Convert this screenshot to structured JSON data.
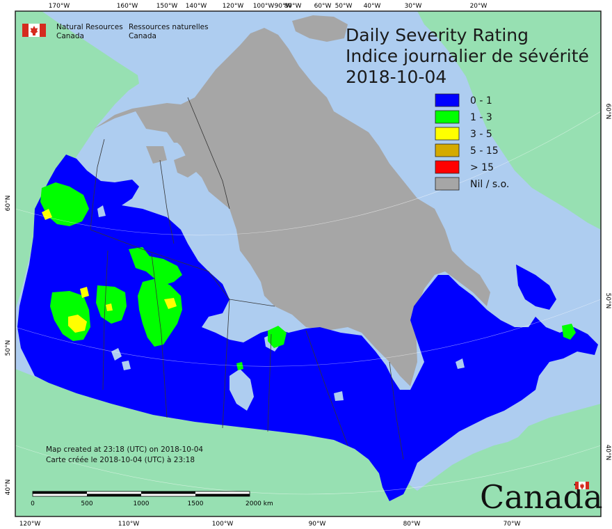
{
  "agency": {
    "name_en_line1": "Natural Resources",
    "name_en_line2": "Canada",
    "name_fr_line1": "Ressources naturelles",
    "name_fr_line2": "Canada"
  },
  "title": {
    "en": "Daily Severity Rating",
    "fr": "Indice journalier de sévérité",
    "date": "2018-10-04"
  },
  "legend": {
    "items": [
      {
        "label": "0 - 1",
        "color": "#0000ff"
      },
      {
        "label": "1 - 3",
        "color": "#00ff00"
      },
      {
        "label": "3 - 5",
        "color": "#ffff00"
      },
      {
        "label": "5 - 15",
        "color": "#d4aa00"
      },
      {
        "label": "> 15",
        "color": "#ff0000"
      },
      {
        "label": "Nil / s.o.",
        "color": "#a6a6a6"
      }
    ]
  },
  "axis_labels": {
    "top": [
      "170°W",
      "160°W",
      "150°W",
      "140°W",
      "120°W",
      "100°W",
      "90°W",
      "80°W",
      "60°W",
      "50°W",
      "40°W",
      "30°W",
      "20°W"
    ],
    "bottom": [
      "120°W",
      "110°W",
      "100°W",
      "90°W",
      "80°W",
      "70°W"
    ],
    "left": [
      "60°N",
      "50°N",
      "40°N"
    ],
    "right": [
      "60°N",
      "50°N",
      "40°N"
    ]
  },
  "footer": {
    "created_en": "Map created at 23:18 (UTC) on 2018-10-04",
    "created_fr": "Carte créée le 2018-10-04 (UTC) à 23:18"
  },
  "scale_bar": {
    "ticks": [
      "0",
      "500",
      "1000",
      "1500",
      "2000 km"
    ]
  },
  "wordmark": "Canada",
  "colors": {
    "ocean": "#aecdf0",
    "foreign_land": "#97e0b2",
    "nodata_land": "#a6a6a6",
    "low_rating": "#0000ff",
    "moderate_rating": "#00ff00",
    "high_rating": "#ffff00",
    "flag_red": "#d52b1e"
  }
}
